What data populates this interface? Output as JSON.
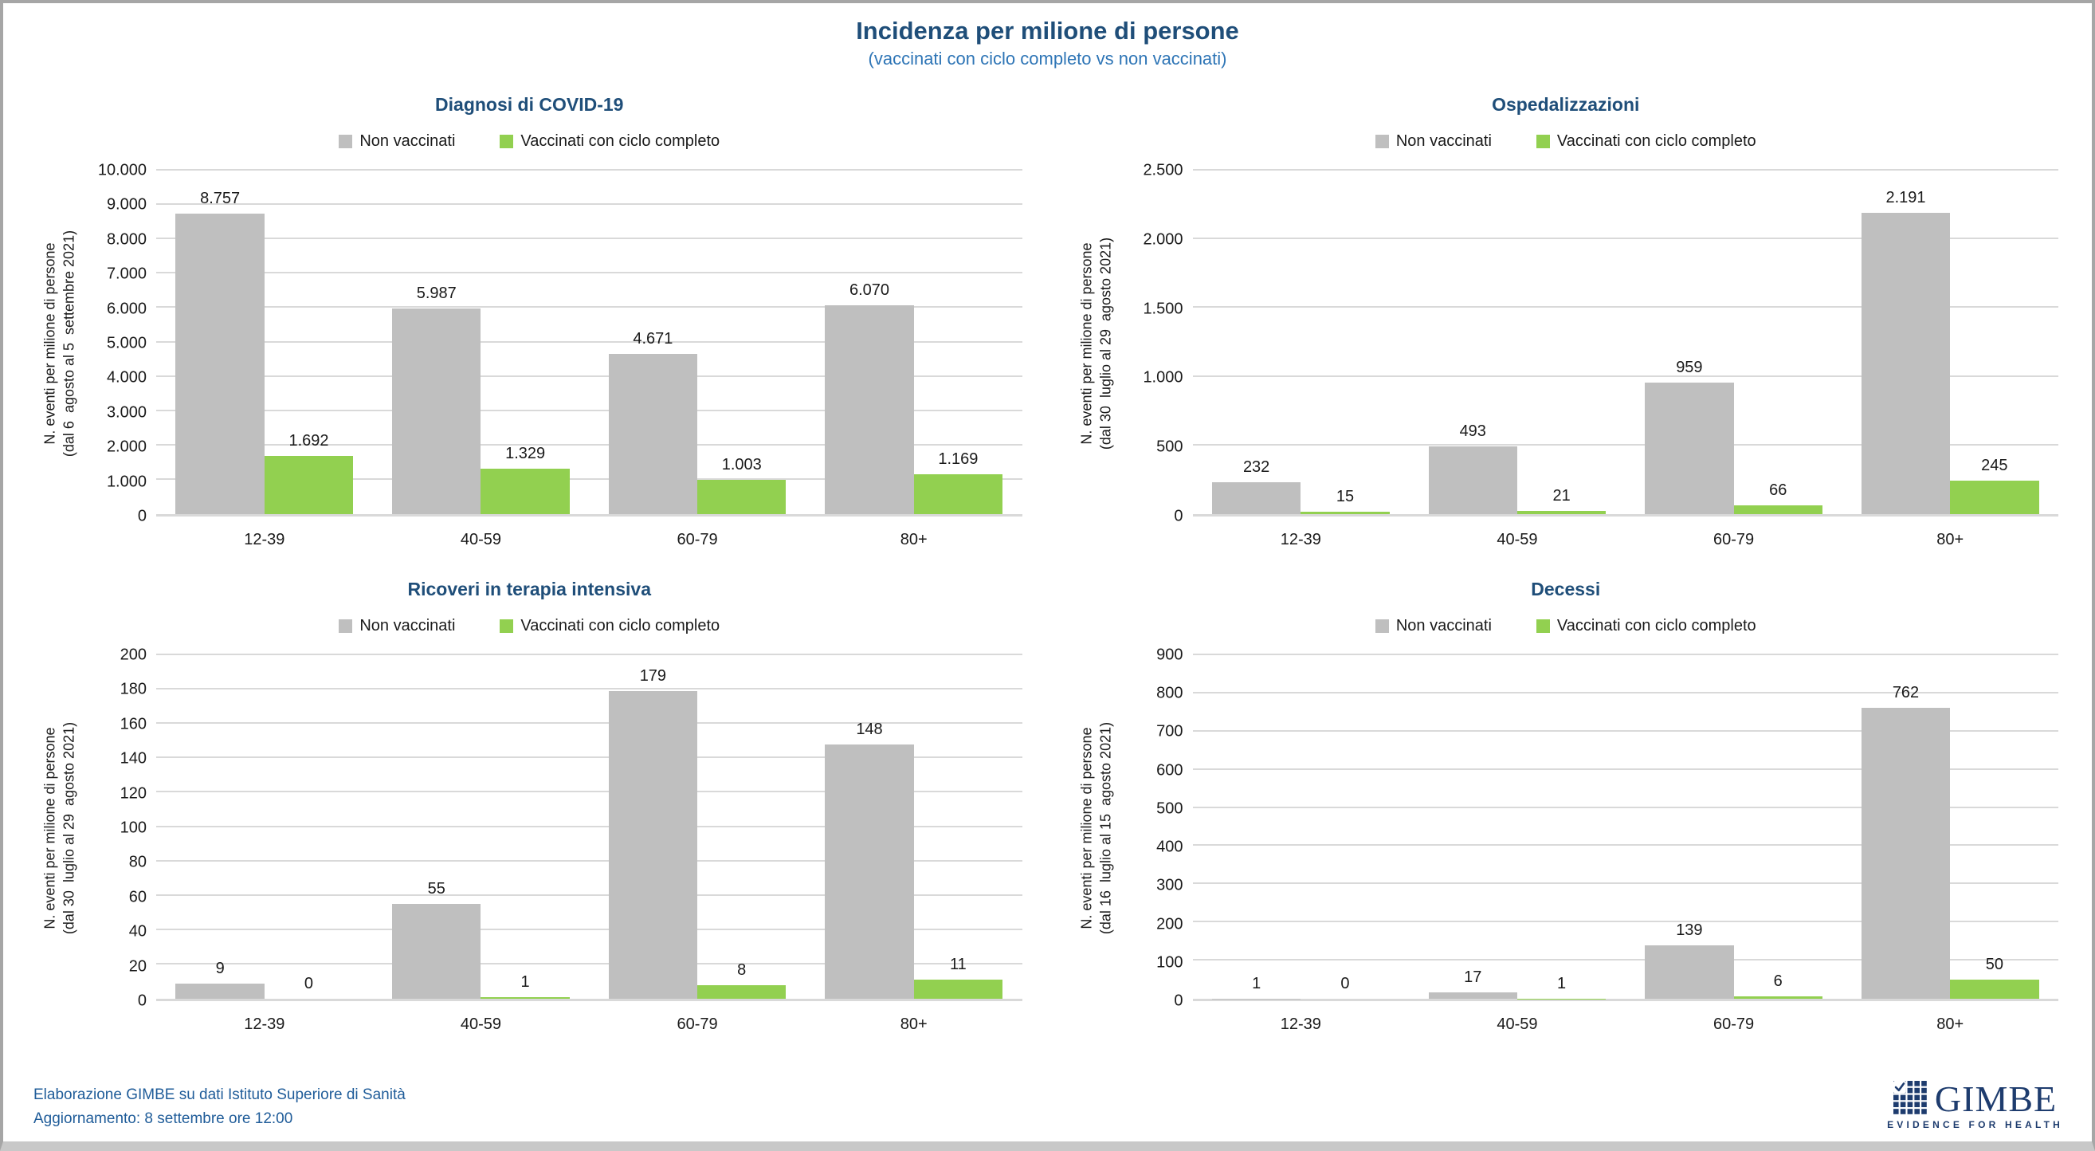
{
  "header": {
    "title": "Incidenza per milione di persone",
    "subtitle": "(vaccinati con ciclo completo vs non vaccinati)"
  },
  "legend": {
    "non_vaccinati": "Non vaccinati",
    "vaccinati": "Vaccinati con ciclo completo"
  },
  "colors": {
    "non_vaccinati": "#BFBFBF",
    "vaccinati": "#92D050",
    "title": "#1F4E79",
    "subtitle": "#2E75B6",
    "gridline": "#D9D9D9",
    "footer_text": "#1F5C99",
    "logo_navy": "#1E3C6E"
  },
  "footer": {
    "source": "Elaborazione GIMBE su dati Istituto Superiore di Sanità",
    "update": "Aggiornamento: 8 settembre ore 12:00",
    "logo_text": "GIMBE",
    "logo_tagline": "EVIDENCE FOR HEALTH"
  },
  "chart_data": [
    {
      "type": "bar",
      "title": "Diagnosi di COVID-19",
      "categories": [
        "12-39",
        "40-59",
        "60-79",
        "80+"
      ],
      "series": [
        {
          "name": "Non vaccinati",
          "color_key": "non_vaccinati",
          "values": [
            8757,
            5987,
            4671,
            6070
          ],
          "labels": [
            "8.757",
            "5.987",
            "4.671",
            "6.070"
          ]
        },
        {
          "name": "Vaccinati con ciclo completo",
          "color_key": "vaccinati",
          "values": [
            1692,
            1329,
            1003,
            1169
          ],
          "labels": [
            "1.692",
            "1.329",
            "1.003",
            "1.169"
          ]
        }
      ],
      "ylabel": [
        "N. eventi per milione di persone",
        "(dal 6  agosto al 5  settembre 2021)"
      ],
      "ylim": [
        0,
        10000
      ],
      "yticks": [
        "0",
        "1.000",
        "2.000",
        "3.000",
        "4.000",
        "5.000",
        "6.000",
        "7.000",
        "8.000",
        "9.000",
        "10.000"
      ],
      "grid": true,
      "legend_position": "top"
    },
    {
      "type": "bar",
      "title": "Ospedalizzazioni",
      "categories": [
        "12-39",
        "40-59",
        "60-79",
        "80+"
      ],
      "series": [
        {
          "name": "Non vaccinati",
          "color_key": "non_vaccinati",
          "values": [
            232,
            493,
            959,
            2191
          ],
          "labels": [
            "232",
            "493",
            "959",
            "2.191"
          ]
        },
        {
          "name": "Vaccinati con ciclo completo",
          "color_key": "vaccinati",
          "values": [
            15,
            21,
            66,
            245
          ],
          "labels": [
            "15",
            "21",
            "66",
            "245"
          ]
        }
      ],
      "ylabel": [
        "N. eventi per milione di persone",
        "(dal 30  luglio al 29  agosto 2021)"
      ],
      "ylim": [
        0,
        2500
      ],
      "yticks": [
        "0",
        "500",
        "1.000",
        "1.500",
        "2.000",
        "2.500"
      ],
      "grid": true,
      "legend_position": "top"
    },
    {
      "type": "bar",
      "title": "Ricoveri in terapia intensiva",
      "categories": [
        "12-39",
        "40-59",
        "60-79",
        "80+"
      ],
      "series": [
        {
          "name": "Non vaccinati",
          "color_key": "non_vaccinati",
          "values": [
            9,
            55,
            179,
            148
          ],
          "labels": [
            "9",
            "55",
            "179",
            "148"
          ]
        },
        {
          "name": "Vaccinati con ciclo completo",
          "color_key": "vaccinati",
          "values": [
            0,
            1,
            8,
            11
          ],
          "labels": [
            "0",
            "1",
            "8",
            "11"
          ]
        }
      ],
      "ylabel": [
        "N. eventi per milione di persone",
        "(dal 30  luglio al 29  agosto 2021)"
      ],
      "ylim": [
        0,
        200
      ],
      "yticks": [
        "0",
        "20",
        "40",
        "60",
        "80",
        "100",
        "120",
        "140",
        "160",
        "180",
        "200"
      ],
      "grid": true,
      "legend_position": "top"
    },
    {
      "type": "bar",
      "title": "Decessi",
      "categories": [
        "12-39",
        "40-59",
        "60-79",
        "80+"
      ],
      "series": [
        {
          "name": "Non vaccinati",
          "color_key": "non_vaccinati",
          "values": [
            1,
            17,
            139,
            762
          ],
          "labels": [
            "1",
            "17",
            "139",
            "762"
          ]
        },
        {
          "name": "Vaccinati con ciclo completo",
          "color_key": "vaccinati",
          "values": [
            0,
            1,
            6,
            50
          ],
          "labels": [
            "0",
            "1",
            "6",
            "50"
          ]
        }
      ],
      "ylabel": [
        "N. eventi per milione di persone",
        "(dal 16  luglio al 15  agosto 2021)"
      ],
      "ylim": [
        0,
        900
      ],
      "yticks": [
        "0",
        "100",
        "200",
        "300",
        "400",
        "500",
        "600",
        "700",
        "800",
        "900"
      ],
      "grid": true,
      "legend_position": "top"
    }
  ]
}
